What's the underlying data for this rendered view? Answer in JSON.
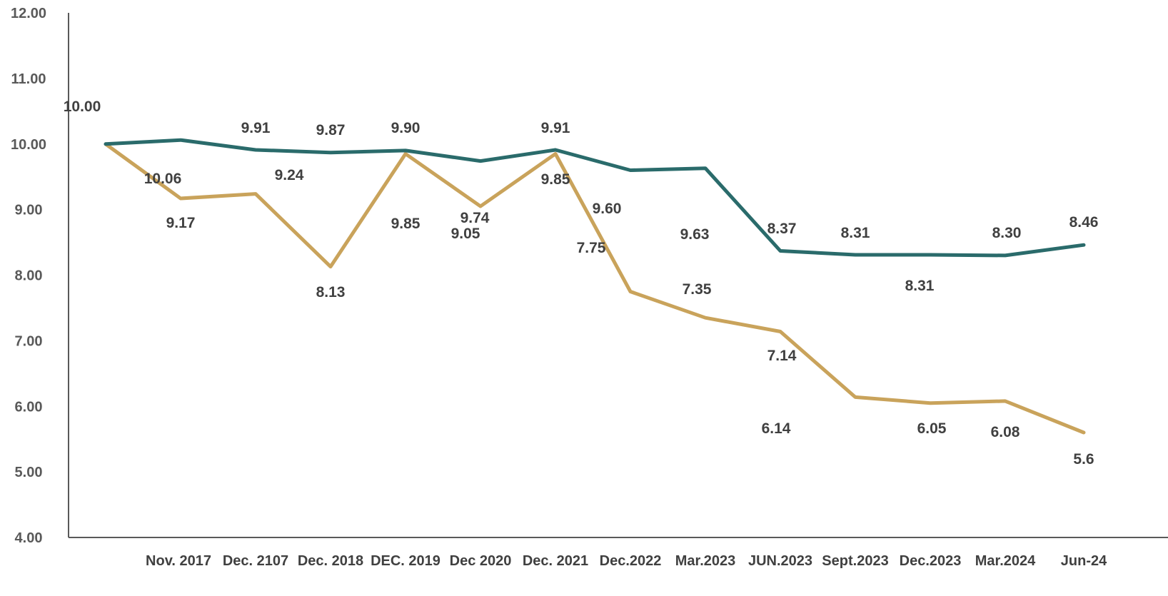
{
  "chart_data": {
    "type": "line",
    "categories": [
      "",
      "Nov. 2017",
      "Dec. 2107",
      "Dec. 2018",
      "DEC. 2019",
      "Dec 2020",
      "Dec. 2021",
      "Dec.2022",
      "Mar.2023",
      "JUN.2023",
      "Sept.2023",
      "Dec.2023",
      "Mar.2024",
      "Jun-24"
    ],
    "ylim": [
      4,
      12
    ],
    "yticks": [
      "4.00",
      "5.00",
      "6.00",
      "7.00",
      "8.00",
      "9.00",
      "10.00",
      "11.00",
      "12.00"
    ],
    "grid": false,
    "legend": "none",
    "series": [
      {
        "color": "#2a6b6b",
        "values": [
          10.0,
          10.06,
          9.91,
          9.87,
          9.9,
          9.74,
          9.91,
          9.6,
          9.63,
          8.37,
          8.31,
          8.31,
          8.3,
          8.46
        ],
        "labels": [
          "10.00",
          "10.06",
          "9.91",
          "9.87",
          "9.90",
          "9.74",
          "9.91",
          "9.60",
          "9.63",
          "8.37",
          "8.31",
          "8.31",
          "8.30",
          "8.46"
        ]
      },
      {
        "color": "#c9a35b",
        "values": [
          10.0,
          9.17,
          9.24,
          8.13,
          9.85,
          9.05,
          9.85,
          7.75,
          7.35,
          7.14,
          6.14,
          6.05,
          6.08,
          5.6
        ],
        "labels": [
          "",
          "9.17",
          "9.24",
          "8.13",
          "9.85",
          "9.05",
          "9.85",
          "7.75",
          "7.35",
          "7.14",
          "6.14",
          "6.05",
          "6.08",
          "5.6"
        ]
      }
    ],
    "axis_color": "#595959"
  }
}
